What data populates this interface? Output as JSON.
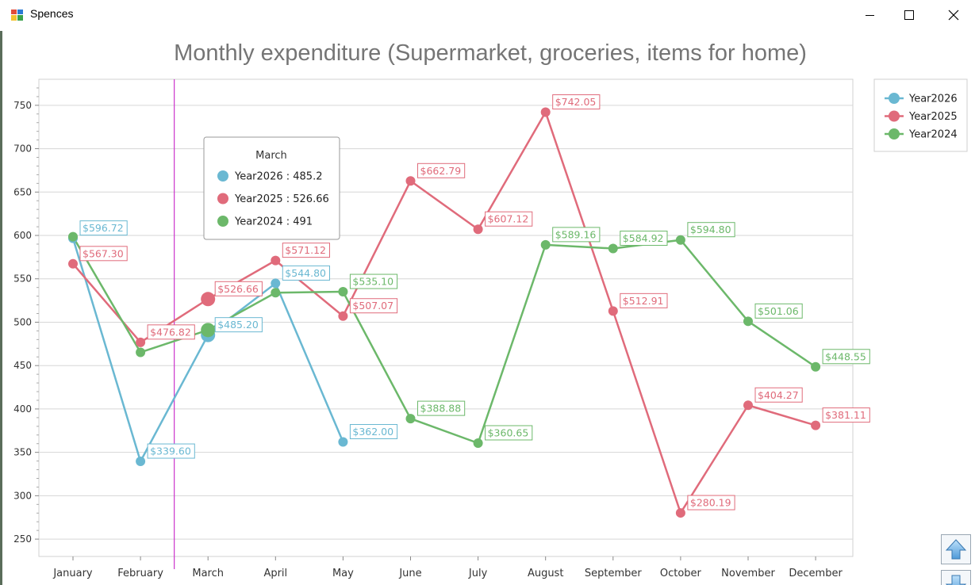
{
  "window": {
    "title": "Spences",
    "controls": {
      "minimize": "minimize-icon",
      "maximize": "maximize-icon",
      "close": "close-icon"
    }
  },
  "chart_data": {
    "type": "line",
    "title": "Monthly expenditure (Supermarket, groceries, items for home)",
    "categories": [
      "January",
      "February",
      "March",
      "April",
      "May",
      "June",
      "July",
      "August",
      "September",
      "October",
      "November",
      "December"
    ],
    "ylim": [
      230,
      780
    ],
    "yticks": [
      250,
      300,
      350,
      400,
      450,
      500,
      550,
      600,
      650,
      700,
      750
    ],
    "grid": true,
    "legend_position": "top-right",
    "series": [
      {
        "name": "Year2026",
        "color": "#6ab8d2",
        "values": [
          596.72,
          339.6,
          485.2,
          544.8,
          362.0,
          null,
          null,
          null,
          null,
          null,
          null,
          null
        ],
        "labels": [
          "$596.72",
          "$339.60",
          "$485.20",
          "$544.80",
          "$362.00",
          null,
          null,
          null,
          null,
          null,
          null,
          null
        ]
      },
      {
        "name": "Year2025",
        "color": "#e06b7b",
        "values": [
          567.3,
          476.82,
          526.66,
          571.12,
          507.07,
          662.79,
          607.12,
          742.05,
          512.91,
          280.19,
          404.27,
          381.11
        ],
        "labels": [
          "$567.30",
          "$476.82",
          "$526.66",
          "$571.12",
          "$507.07",
          "$662.79",
          "$607.12",
          "$742.05",
          "$512.91",
          "$280.19",
          "$404.27",
          "$381.11"
        ]
      },
      {
        "name": "Year2024",
        "color": "#6cb86a",
        "values": [
          598.5,
          465.3,
          491,
          534.0,
          535.1,
          388.88,
          360.65,
          589.16,
          584.92,
          594.8,
          501.06,
          448.55
        ],
        "labels": [
          null,
          null,
          null,
          null,
          "$535.10",
          "$388.88",
          "$360.65",
          "$589.16",
          "$584.92",
          "$594.80",
          "$501.06",
          "$448.55"
        ]
      }
    ],
    "crosshair": {
      "category": "March",
      "color": "#cc33cc",
      "tooltip": {
        "title": "March",
        "rows": [
          {
            "series": "Year2026",
            "text": "Year2026 : 485.2",
            "color": "#6ab8d2"
          },
          {
            "series": "Year2025",
            "text": "Year2025 : 526.66",
            "color": "#e06b7b"
          },
          {
            "series": "Year2024",
            "text": "Year2024 : 491",
            "color": "#6cb86a"
          }
        ]
      }
    }
  },
  "scroll": {
    "up_icon": "arrow-up-icon",
    "down_icon": "arrow-down-icon"
  }
}
